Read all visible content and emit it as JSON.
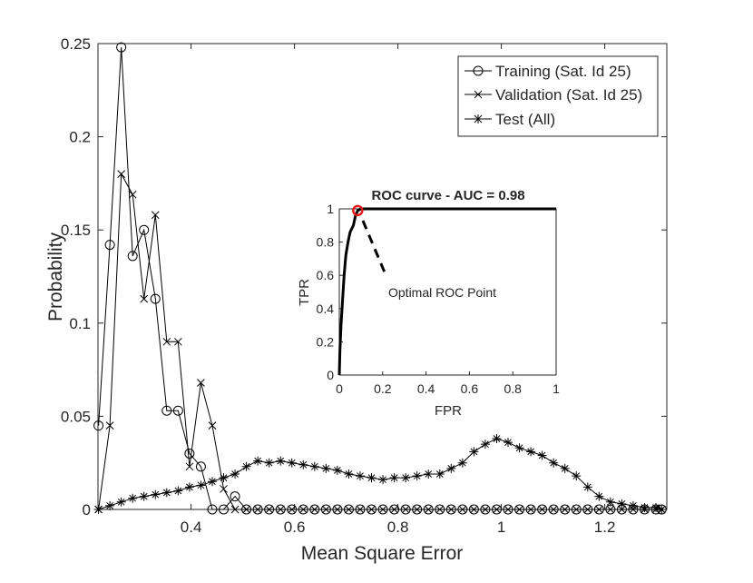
{
  "chart_data": [
    {
      "type": "line",
      "xlabel": "Mean Square Error",
      "ylabel": "Probability",
      "xlim": [
        0.22,
        1.32
      ],
      "ylim": [
        0,
        0.25
      ],
      "xticks": [
        "0.4",
        "0.6",
        "0.8",
        "1",
        "1.2"
      ],
      "yticks": [
        "0",
        "0.05",
        "0.1",
        "0.15",
        "0.2",
        "0.25"
      ],
      "legend_position": "top-right",
      "series": [
        {
          "name": "Training (Sat. Id 25)",
          "marker": "circle",
          "points": [
            [
              0.221,
              0.045
            ],
            [
              0.243,
              0.142
            ],
            [
              0.265,
              0.248
            ],
            [
              0.287,
              0.136
            ],
            [
              0.309,
              0.15
            ],
            [
              0.331,
              0.113
            ],
            [
              0.353,
              0.053
            ],
            [
              0.375,
              0.053
            ],
            [
              0.397,
              0.03
            ],
            [
              0.419,
              0.023
            ],
            [
              0.441,
              0.0
            ],
            [
              0.463,
              0.0
            ],
            [
              0.485,
              0.007
            ],
            [
              0.507,
              0.0
            ],
            [
              0.529,
              0.0
            ],
            [
              0.551,
              0.0
            ],
            [
              0.573,
              0.0
            ],
            [
              0.595,
              0.0
            ],
            [
              0.617,
              0.0
            ],
            [
              0.639,
              0.0
            ],
            [
              0.661,
              0.0
            ],
            [
              0.683,
              0.0
            ],
            [
              0.705,
              0.0
            ],
            [
              0.727,
              0.0
            ],
            [
              0.749,
              0.0
            ],
            [
              0.771,
              0.0
            ],
            [
              0.793,
              0.0
            ],
            [
              0.815,
              0.0
            ],
            [
              0.837,
              0.0
            ],
            [
              0.859,
              0.0
            ],
            [
              0.881,
              0.0
            ],
            [
              0.903,
              0.0
            ],
            [
              0.925,
              0.0
            ],
            [
              0.947,
              0.0
            ],
            [
              0.969,
              0.0
            ],
            [
              0.991,
              0.0
            ],
            [
              1.013,
              0.0
            ],
            [
              1.035,
              0.0
            ],
            [
              1.057,
              0.0
            ],
            [
              1.079,
              0.0
            ],
            [
              1.101,
              0.0
            ],
            [
              1.123,
              0.0
            ],
            [
              1.145,
              0.0
            ],
            [
              1.167,
              0.0
            ],
            [
              1.189,
              0.0
            ],
            [
              1.211,
              0.0
            ],
            [
              1.233,
              0.0
            ],
            [
              1.255,
              0.0
            ],
            [
              1.277,
              0.0
            ],
            [
              1.299,
              0.0
            ],
            [
              1.31,
              0.0
            ]
          ]
        },
        {
          "name": "Validation (Sat. Id 25)",
          "marker": "x",
          "points": [
            [
              0.221,
              0.0
            ],
            [
              0.243,
              0.045
            ],
            [
              0.265,
              0.18
            ],
            [
              0.287,
              0.169
            ],
            [
              0.309,
              0.113
            ],
            [
              0.331,
              0.158
            ],
            [
              0.353,
              0.09
            ],
            [
              0.375,
              0.09
            ],
            [
              0.397,
              0.023
            ],
            [
              0.419,
              0.068
            ],
            [
              0.441,
              0.045
            ],
            [
              0.463,
              0.011
            ],
            [
              0.485,
              0.0
            ],
            [
              0.507,
              0.0
            ],
            [
              0.529,
              0.0
            ],
            [
              0.551,
              0.0
            ],
            [
              0.573,
              0.0
            ],
            [
              0.595,
              0.0
            ],
            [
              0.617,
              0.0
            ],
            [
              0.639,
              0.0
            ],
            [
              0.661,
              0.0
            ],
            [
              0.683,
              0.0
            ],
            [
              0.705,
              0.0
            ],
            [
              0.727,
              0.0
            ],
            [
              0.749,
              0.0
            ],
            [
              0.771,
              0.0
            ],
            [
              0.793,
              0.0
            ],
            [
              0.815,
              0.0
            ],
            [
              0.837,
              0.0
            ],
            [
              0.859,
              0.0
            ],
            [
              0.881,
              0.0
            ],
            [
              0.903,
              0.0
            ],
            [
              0.925,
              0.0
            ],
            [
              0.947,
              0.0
            ],
            [
              0.969,
              0.0
            ],
            [
              0.991,
              0.0
            ],
            [
              1.013,
              0.0
            ],
            [
              1.035,
              0.0
            ],
            [
              1.057,
              0.0
            ],
            [
              1.079,
              0.0
            ],
            [
              1.101,
              0.0
            ],
            [
              1.123,
              0.0
            ],
            [
              1.145,
              0.0
            ],
            [
              1.167,
              0.0
            ],
            [
              1.189,
              0.0
            ],
            [
              1.211,
              0.0
            ],
            [
              1.233,
              0.0
            ],
            [
              1.255,
              0.0
            ],
            [
              1.277,
              0.0
            ],
            [
              1.299,
              0.0
            ],
            [
              1.31,
              0.0
            ]
          ]
        },
        {
          "name": "Test (All)",
          "marker": "asterisk",
          "points": [
            [
              0.221,
              0.0
            ],
            [
              0.243,
              0.002
            ],
            [
              0.265,
              0.004
            ],
            [
              0.287,
              0.006
            ],
            [
              0.309,
              0.007
            ],
            [
              0.331,
              0.008
            ],
            [
              0.353,
              0.009
            ],
            [
              0.375,
              0.01
            ],
            [
              0.397,
              0.012
            ],
            [
              0.419,
              0.013
            ],
            [
              0.441,
              0.015
            ],
            [
              0.463,
              0.017
            ],
            [
              0.485,
              0.019
            ],
            [
              0.507,
              0.023
            ],
            [
              0.529,
              0.026
            ],
            [
              0.551,
              0.025
            ],
            [
              0.573,
              0.026
            ],
            [
              0.595,
              0.025
            ],
            [
              0.617,
              0.024
            ],
            [
              0.639,
              0.023
            ],
            [
              0.661,
              0.022
            ],
            [
              0.683,
              0.021
            ],
            [
              0.705,
              0.019
            ],
            [
              0.727,
              0.018
            ],
            [
              0.749,
              0.017
            ],
            [
              0.771,
              0.016
            ],
            [
              0.793,
              0.017
            ],
            [
              0.815,
              0.017
            ],
            [
              0.837,
              0.018
            ],
            [
              0.859,
              0.019
            ],
            [
              0.881,
              0.019
            ],
            [
              0.903,
              0.022
            ],
            [
              0.925,
              0.025
            ],
            [
              0.947,
              0.031
            ],
            [
              0.969,
              0.035
            ],
            [
              0.991,
              0.038
            ],
            [
              1.013,
              0.036
            ],
            [
              1.035,
              0.033
            ],
            [
              1.057,
              0.031
            ],
            [
              1.079,
              0.029
            ],
            [
              1.101,
              0.025
            ],
            [
              1.123,
              0.022
            ],
            [
              1.145,
              0.018
            ],
            [
              1.167,
              0.012
            ],
            [
              1.189,
              0.007
            ],
            [
              1.211,
              0.004
            ],
            [
              1.233,
              0.003
            ],
            [
              1.255,
              0.002
            ],
            [
              1.277,
              0.001
            ],
            [
              1.299,
              0.001
            ],
            [
              1.31,
              0.0
            ]
          ]
        }
      ]
    },
    {
      "type": "line",
      "title": "ROC curve - AUC = 0.98",
      "xlabel": "FPR",
      "ylabel": "TPR",
      "xlim": [
        0,
        1
      ],
      "ylim": [
        0,
        1
      ],
      "xticks": [
        "0",
        "0.2",
        "0.4",
        "0.6",
        "0.8",
        "1"
      ],
      "yticks": [
        "0",
        "0.2",
        "0.4",
        "0.6",
        "0.8",
        "1"
      ],
      "roc_points": [
        [
          0,
          0
        ],
        [
          0.003,
          0.15
        ],
        [
          0.008,
          0.3
        ],
        [
          0.015,
          0.45
        ],
        [
          0.022,
          0.6
        ],
        [
          0.03,
          0.72
        ],
        [
          0.04,
          0.8
        ],
        [
          0.05,
          0.86
        ],
        [
          0.065,
          0.9
        ],
        [
          0.075,
          0.96
        ],
        [
          0.085,
          0.99
        ],
        [
          0.1,
          1.0
        ],
        [
          1.0,
          1.0
        ]
      ],
      "optimal_point": [
        0.085,
        0.99
      ],
      "annotation": "Optimal ROC Point",
      "annotation_color": "#e31a1c"
    }
  ]
}
